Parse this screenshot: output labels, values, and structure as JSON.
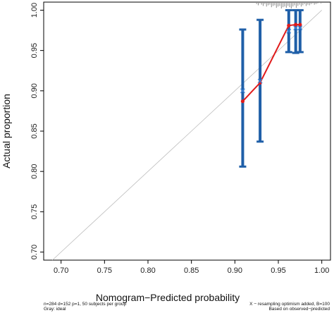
{
  "chart_data": {
    "type": "scatter",
    "xlabel": "Nomogram−Predicted probability",
    "ylabel": "Actual proportion",
    "xlim": [
      0.68,
      1.01
    ],
    "ylim": [
      0.69,
      1.01
    ],
    "x_ticks": [
      "0.70",
      "0.75",
      "0.80",
      "0.85",
      "0.90",
      "0.95",
      "1.00"
    ],
    "y_ticks": [
      "0.70",
      "0.75",
      "0.80",
      "0.85",
      "0.90",
      "0.95",
      "1.00"
    ],
    "ideal_line": [
      [
        0.69,
        0.69
      ],
      [
        1.0,
        1.0
      ]
    ],
    "observed": {
      "x": [
        0.909,
        0.929,
        0.962,
        0.97,
        0.975
      ],
      "y": [
        0.887,
        0.91,
        0.981,
        0.982,
        0.982
      ]
    },
    "corrected": {
      "x": [
        0.909,
        0.929,
        0.962,
        0.97,
        0.975
      ],
      "y": [
        0.9,
        0.912,
        0.974,
        0.978,
        0.978
      ]
    },
    "error_bars": [
      {
        "x": 0.909,
        "low": 0.806,
        "high": 0.976
      },
      {
        "x": 0.929,
        "low": 0.837,
        "high": 0.988
      },
      {
        "x": 0.962,
        "low": 0.948,
        "high": 1.0
      },
      {
        "x": 0.97,
        "low": 0.947,
        "high": 1.0
      },
      {
        "x": 0.975,
        "low": 0.948,
        "high": 1.0
      }
    ],
    "footnotes": {
      "left_line1": "n=284 d=152 p=1, 50 subjects per group",
      "left_line2": "Gray: ideal",
      "right_line1": "X − resampling optimism added, B=100",
      "right_line2": "Based on observed−predicted"
    },
    "colors": {
      "error_bar": "#1f5fa8",
      "observed_line": "#e01b1b",
      "ideal_line": "#bdbdbd",
      "rug": "#8a8a8a"
    },
    "grid": false
  }
}
